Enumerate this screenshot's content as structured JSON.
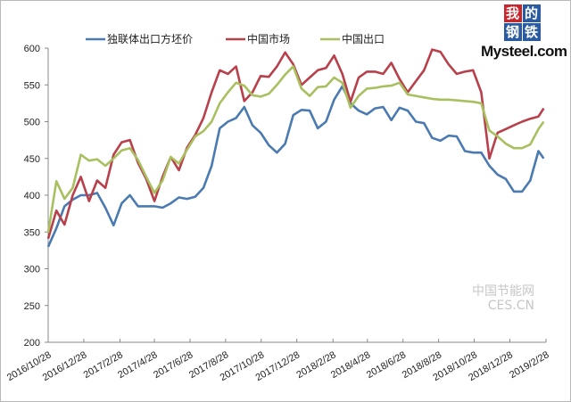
{
  "logo": {
    "chars": [
      "我",
      "的",
      "钢",
      "铁"
    ],
    "text": "Mysteel.com"
  },
  "watermark": {
    "line1": "中国节能网",
    "line2": "CES.CN"
  },
  "chart_data": {
    "type": "line",
    "title": "",
    "xlabel": "",
    "ylabel": "",
    "ylim": [
      200,
      600
    ],
    "yticks": [
      200,
      250,
      300,
      350,
      400,
      450,
      500,
      550,
      600
    ],
    "xlim": [
      "2016-10-28",
      "2019-02-28"
    ],
    "xtick_labels": [
      "2016/10/28",
      "2016/12/28",
      "2017/2/28",
      "2017/4/28",
      "2017/6/28",
      "2017/8/28",
      "2017/10/28",
      "2017/12/28",
      "2018/2/28",
      "2018/4/28",
      "2018/6/28",
      "2018/8/28",
      "2018/10/28",
      "2018/12/28",
      "2019/2/28"
    ],
    "xtick_dates": [
      "2016-10-28",
      "2016-12-28",
      "2017-02-28",
      "2017-04-28",
      "2017-06-28",
      "2017-08-28",
      "2017-10-28",
      "2017-12-28",
      "2018-02-28",
      "2018-04-28",
      "2018-06-28",
      "2018-08-28",
      "2018-10-28",
      "2018-12-28",
      "2019-02-28"
    ],
    "grid": false,
    "legend_position": "top",
    "x": [
      "2016-10-28",
      "2016-11-11",
      "2016-11-25",
      "2016-12-09",
      "2016-12-23",
      "2017-01-06",
      "2017-01-20",
      "2017-02-03",
      "2017-02-17",
      "2017-03-03",
      "2017-03-17",
      "2017-03-31",
      "2017-04-14",
      "2017-04-28",
      "2017-05-12",
      "2017-05-26",
      "2017-06-09",
      "2017-06-23",
      "2017-07-07",
      "2017-07-21",
      "2017-08-04",
      "2017-08-18",
      "2017-09-01",
      "2017-09-15",
      "2017-09-29",
      "2017-10-13",
      "2017-10-27",
      "2017-11-10",
      "2017-11-24",
      "2017-12-08",
      "2017-12-22",
      "2018-01-05",
      "2018-01-19",
      "2018-02-02",
      "2018-02-16",
      "2018-03-02",
      "2018-03-16",
      "2018-03-30",
      "2018-04-13",
      "2018-04-27",
      "2018-05-11",
      "2018-05-25",
      "2018-06-08",
      "2018-06-22",
      "2018-07-06",
      "2018-07-20",
      "2018-08-03",
      "2018-08-17",
      "2018-08-31",
      "2018-09-14",
      "2018-09-28",
      "2018-10-12",
      "2018-10-26",
      "2018-11-09",
      "2018-11-23",
      "2018-12-07",
      "2018-12-21",
      "2019-01-04",
      "2019-01-18",
      "2019-02-01",
      "2019-02-15",
      "2019-02-24"
    ],
    "series": [
      {
        "name": "独联体出口方坯价",
        "color": "#4a7ab0",
        "values": [
          330,
          355,
          385,
          394,
          400,
          400,
          403,
          383,
          359,
          389,
          400,
          385,
          385,
          385,
          383,
          389,
          397,
          395,
          398,
          410,
          440,
          491,
          500,
          505,
          520,
          495,
          485,
          468,
          458,
          470,
          509,
          516,
          515,
          491,
          500,
          530,
          548,
          525,
          515,
          510,
          518,
          520,
          502,
          519,
          515,
          500,
          498,
          478,
          474,
          481,
          480,
          460,
          458,
          458,
          440,
          428,
          422,
          405,
          405,
          420,
          460,
          450
        ]
      },
      {
        "name": "中国市场",
        "color": "#b8404a",
        "values": [
          341,
          379,
          360,
          400,
          425,
          392,
          420,
          410,
          455,
          472,
          475,
          444,
          422,
          392,
          425,
          452,
          434,
          465,
          482,
          505,
          540,
          570,
          565,
          575,
          528,
          540,
          562,
          561,
          575,
          594,
          578,
          550,
          560,
          570,
          573,
          590,
          565,
          527,
          560,
          568,
          568,
          565,
          580,
          558,
          540,
          555,
          570,
          598,
          595,
          578,
          565,
          568,
          570,
          540,
          450,
          485,
          490,
          495,
          500,
          504,
          507,
          518
        ]
      },
      {
        "name": "中国出口",
        "color": "#a8c060",
        "values": [
          349,
          419,
          395,
          410,
          455,
          447,
          449,
          440,
          450,
          461,
          464,
          448,
          425,
          403,
          420,
          452,
          443,
          462,
          480,
          487,
          500,
          525,
          540,
          553,
          549,
          536,
          534,
          538,
          550,
          564,
          575,
          545,
          535,
          547,
          548,
          560,
          553,
          519,
          535,
          545,
          546,
          548,
          549,
          553,
          537,
          535,
          533,
          531,
          530,
          530,
          529,
          528,
          527,
          525,
          488,
          480,
          470,
          464,
          464,
          469,
          490,
          500
        ]
      }
    ]
  }
}
